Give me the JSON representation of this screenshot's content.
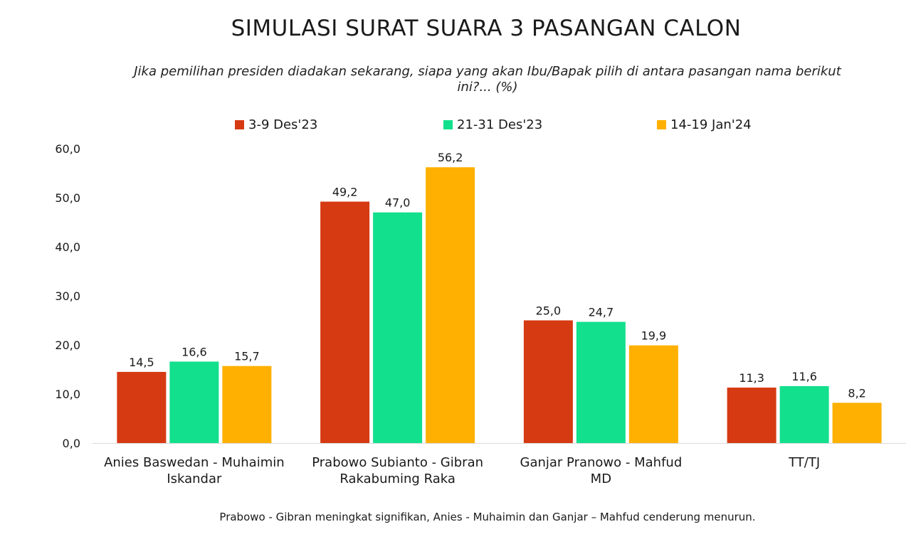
{
  "chart_data": {
    "type": "bar",
    "title": "SIMULASI SURAT SUARA 3 PASANGAN CALON",
    "subtitle": "Jika pemilihan presiden diadakan sekarang, siapa yang akan Ibu/Bapak pilih di antara pasangan nama berikut ini?... (%)",
    "categories": [
      [
        "Anies Baswedan - Muhaimin",
        "Iskandar"
      ],
      [
        "Prabowo Subianto - Gibran",
        "Rakabuming Raka"
      ],
      [
        "Ganjar Pranowo - Mahfud",
        "MD"
      ],
      [
        "TT/TJ"
      ]
    ],
    "series": [
      {
        "name": "3-9 Des'23",
        "color": "#d63a12",
        "values": [
          14.5,
          49.2,
          25.0,
          11.3
        ]
      },
      {
        "name": "21-31 Des'23",
        "color": "#12e08c",
        "values": [
          16.6,
          47.0,
          24.7,
          11.6
        ]
      },
      {
        "name": "14-19 Jan'24",
        "color": "#ffb000",
        "values": [
          15.7,
          56.2,
          19.9,
          8.2
        ]
      }
    ],
    "ylim": [
      0,
      60
    ],
    "yticks": [
      0,
      10,
      20,
      30,
      40,
      50,
      60
    ],
    "legend_position": "top",
    "grid": false,
    "footnote": "Prabowo - Gibran meningkat signifikan, Anies - Muhaimin dan Ganjar – Mahfud cenderung menurun."
  }
}
